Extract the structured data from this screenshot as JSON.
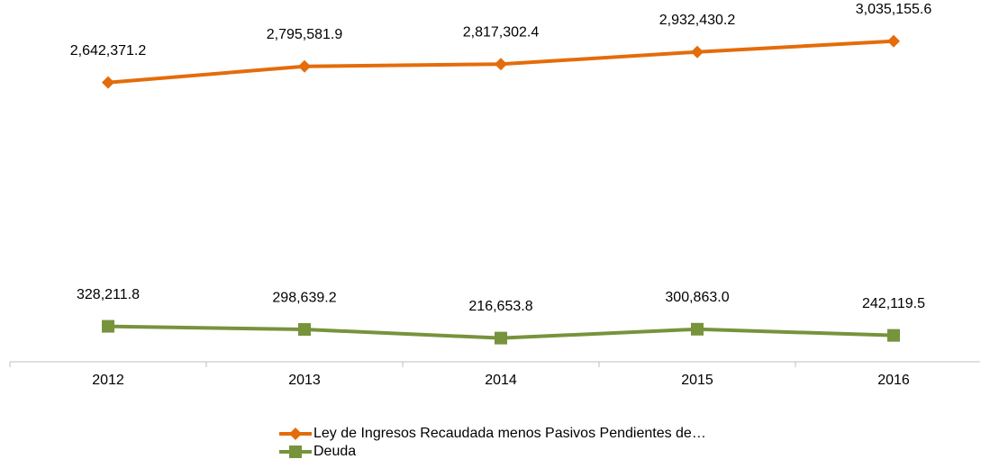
{
  "chart_data": {
    "type": "line",
    "categories": [
      "2012",
      "2013",
      "2014",
      "2015",
      "2016"
    ],
    "ylim": [
      0,
      3400000
    ],
    "series": [
      {
        "name": "Ley de Ingresos Recaudada menos Pasivos Pendientes de…",
        "color": "#e46c0a",
        "marker": "diamond",
        "values": [
          2642371.2,
          2795581.9,
          2817302.4,
          2932430.2,
          3035155.6
        ],
        "value_labels": [
          "2,642,371.2",
          "2,795,581.9",
          "2,817,302.4",
          "2,932,430.2",
          "3,035,155.6"
        ]
      },
      {
        "name": "Deuda",
        "color": "#77933c",
        "marker": "square",
        "values": [
          328211.8,
          298639.2,
          216653.8,
          300863.0,
          242119.5
        ],
        "value_labels": [
          "328,211.8",
          "298,639.2",
          "216,653.8",
          "300,863.0",
          "242,119.5"
        ]
      }
    ]
  }
}
